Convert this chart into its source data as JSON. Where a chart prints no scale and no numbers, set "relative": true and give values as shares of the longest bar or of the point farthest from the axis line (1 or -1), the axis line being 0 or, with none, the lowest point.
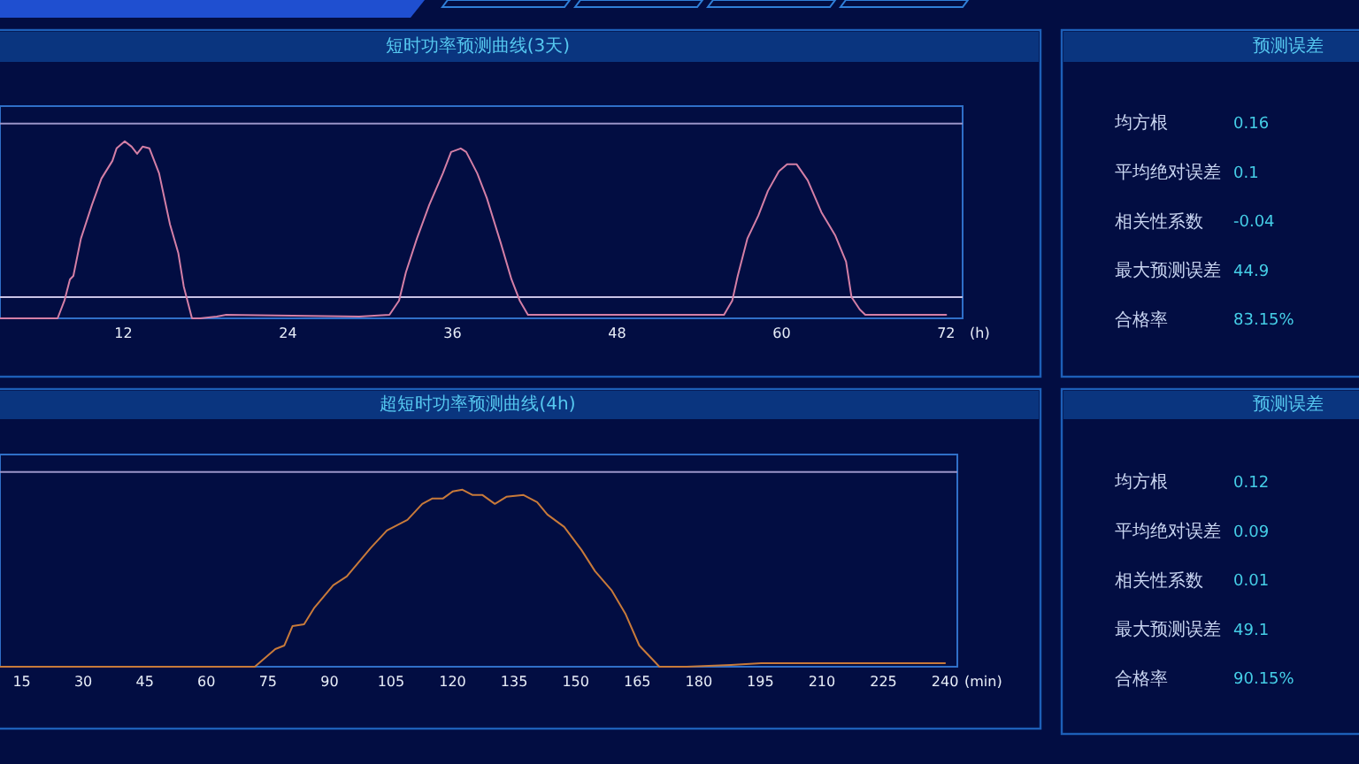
{
  "chart_data": [
    {
      "type": "line",
      "title": "短时功率预测曲线(3天)",
      "xlabel": "(h)",
      "relative": true,
      "xlim": [
        3,
        73.2
      ],
      "xticks": [
        12,
        24,
        36,
        48,
        60,
        72
      ],
      "ref_lines": [
        {
          "axis": "y",
          "value": 0.12,
          "color": "#c9c3e6"
        },
        {
          "axis": "y",
          "value": 1.1,
          "color": "#9a94c8"
        }
      ],
      "series": [
        {
          "color": "#d47fa6",
          "x": [
            3,
            7.2,
            7.7,
            8.1,
            8.35,
            8.9,
            9.7,
            10.4,
            11.2,
            11.5,
            12.1,
            12.6,
            13.0,
            13.4,
            13.9,
            14.6,
            15.4,
            16.0,
            16.4,
            17.0,
            17.6,
            18.8,
            19.5,
            29.2,
            31.4,
            32.1,
            32.6,
            33.4,
            34.3,
            35.3,
            35.9,
            36.6,
            37.0,
            37.8,
            38.5,
            39.5,
            40.3,
            40.9,
            41.5,
            55.8,
            56.4,
            56.8,
            57.5,
            58.3,
            59.0,
            59.8,
            60.4,
            61.1,
            61.9,
            62.9,
            63.9,
            64.7,
            65.1,
            65.7,
            66.1,
            72
          ],
          "values": [
            0,
            0,
            0.1,
            0.22,
            0.24,
            0.45,
            0.64,
            0.79,
            0.89,
            0.96,
            1.0,
            0.97,
            0.93,
            0.97,
            0.96,
            0.82,
            0.53,
            0.37,
            0.18,
            0,
            0,
            0.01,
            0.02,
            0.01,
            0.02,
            0.1,
            0.26,
            0.45,
            0.64,
            0.82,
            0.94,
            0.96,
            0.94,
            0.82,
            0.68,
            0.43,
            0.22,
            0.1,
            0.02,
            0.02,
            0.1,
            0.24,
            0.45,
            0.58,
            0.72,
            0.83,
            0.87,
            0.87,
            0.78,
            0.6,
            0.47,
            0.32,
            0.12,
            0.05,
            0.02,
            0.02
          ]
        }
      ]
    },
    {
      "type": "other",
      "title": "预测误差",
      "annotations": [
        "均方根",
        "0.16",
        "平均绝对误差",
        "0.1",
        "相关性系数",
        "-0.04",
        "最大预测误差",
        "44.9",
        "合格率",
        "83.15%"
      ]
    },
    {
      "type": "line",
      "title": "超短时功率预测曲线(4h)",
      "xlabel": "(min)",
      "relative": true,
      "xlim": [
        9.7,
        243
      ],
      "xticks": [
        15,
        30,
        45,
        60,
        75,
        90,
        105,
        120,
        135,
        150,
        165,
        180,
        195,
        210,
        225,
        240
      ],
      "ref_lines": [
        {
          "axis": "y",
          "value": 1.1,
          "color": "#9a94c8"
        }
      ],
      "series": [
        {
          "color": "#c87a3a",
          "x": [
            9.7,
            71.8,
            74.3,
            76.8,
            79,
            81,
            83.8,
            86.2,
            90.9,
            94.2,
            100,
            104,
            109,
            112.6,
            115,
            117.6,
            120,
            122.4,
            124.9,
            127.3,
            130.3,
            133.1,
            137.3,
            140.6,
            143.1,
            147.2,
            151.4,
            154.7,
            158.8,
            162.1,
            165.5,
            170.4,
            177,
            187.8,
            195.2,
            240
          ],
          "values": [
            0,
            0,
            0.05,
            0.1,
            0.12,
            0.23,
            0.24,
            0.33,
            0.46,
            0.51,
            0.67,
            0.77,
            0.83,
            0.92,
            0.95,
            0.95,
            0.99,
            1.0,
            0.97,
            0.97,
            0.92,
            0.96,
            0.97,
            0.93,
            0.86,
            0.79,
            0.66,
            0.54,
            0.43,
            0.3,
            0.12,
            0,
            0,
            0.01,
            0.02,
            0.02
          ]
        }
      ]
    },
    {
      "type": "other",
      "title": "预测误差",
      "annotations": [
        "均方根",
        "0.12",
        "平均绝对误差",
        "0.09",
        "相关性系数",
        "0.01",
        "最大预测误差",
        "49.1",
        "合格率",
        "90.15%"
      ]
    }
  ]
}
